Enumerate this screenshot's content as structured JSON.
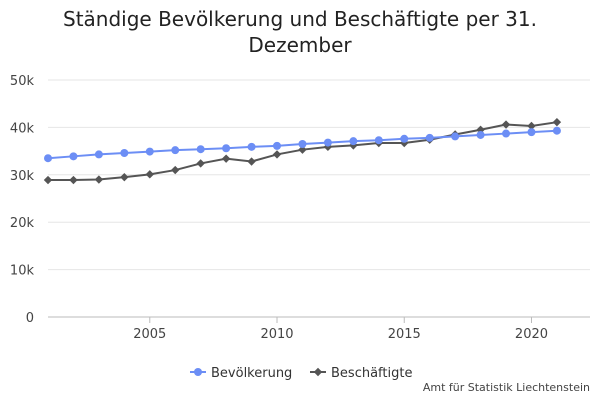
{
  "chart_data": {
    "type": "line",
    "title": "Ständige Bevölkerung und Beschäftigte per 31. Dezember",
    "x": [
      2001,
      2002,
      2003,
      2004,
      2005,
      2006,
      2007,
      2008,
      2009,
      2010,
      2011,
      2012,
      2013,
      2014,
      2015,
      2016,
      2017,
      2018,
      2019,
      2020,
      2021
    ],
    "series": [
      {
        "name": "Bevölkerung",
        "color": "#6c8ef5",
        "marker": "circle",
        "values": [
          33500,
          33900,
          34300,
          34600,
          34900,
          35200,
          35400,
          35600,
          35900,
          36100,
          36500,
          36800,
          37100,
          37300,
          37600,
          37800,
          38100,
          38400,
          38700,
          39000,
          39300
        ]
      },
      {
        "name": "Beschäftigte",
        "color": "#555555",
        "marker": "diamond",
        "values": [
          28900,
          28900,
          29000,
          29500,
          30100,
          31000,
          32400,
          33400,
          32800,
          34300,
          35300,
          35900,
          36200,
          36700,
          36700,
          37400,
          38500,
          39500,
          40600,
          40300,
          41100
        ]
      }
    ],
    "xticks": [
      2005,
      2010,
      2015,
      2020
    ],
    "xtick_labels": [
      "2005",
      "2010",
      "2015",
      "2020"
    ],
    "yticks": [
      0,
      10000,
      20000,
      30000,
      40000,
      50000
    ],
    "ytick_labels": [
      "0",
      "10k",
      "20k",
      "30k",
      "40k",
      "50k"
    ],
    "xlim": [
      2001,
      2022.3
    ],
    "ylim": [
      0,
      50000
    ],
    "grid": "horizontal",
    "legend": "bottom-center",
    "source": "Amt für Statistik Liechtenstein"
  }
}
